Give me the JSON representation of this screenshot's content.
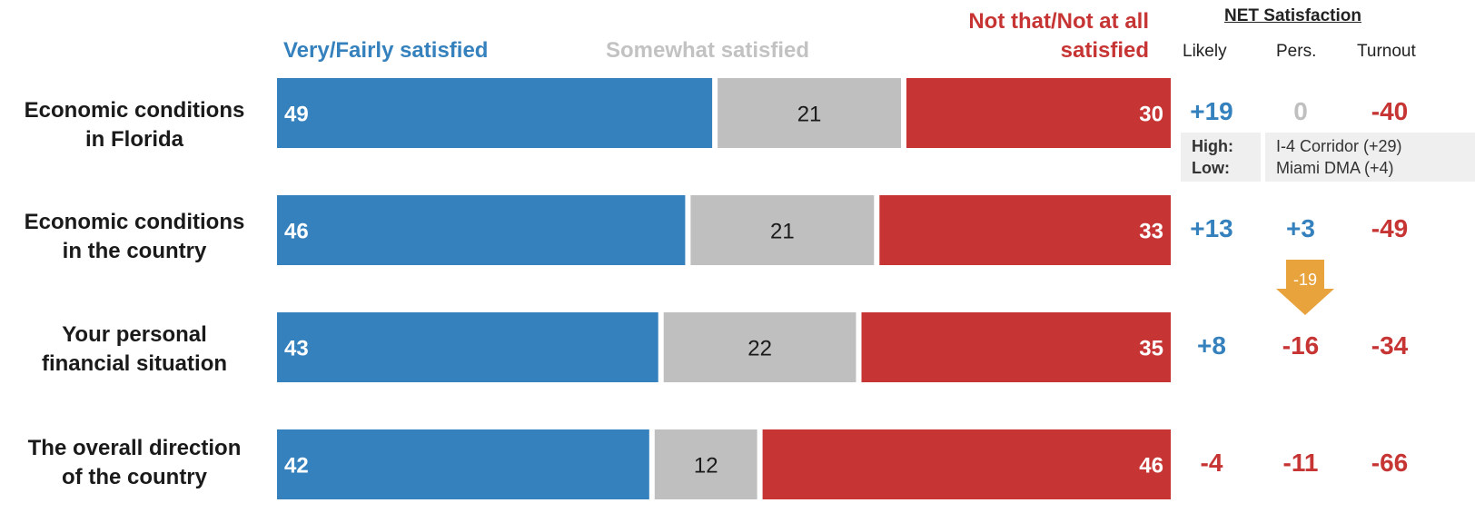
{
  "chart_data": {
    "type": "bar",
    "orientation": "horizontal",
    "stacked": true,
    "categories": [
      "Economic conditions in Florida",
      "Economic conditions in the country",
      "Your personal financial situation",
      "The overall direction of the country"
    ],
    "category_lines": [
      [
        "Economic conditions",
        "in Florida"
      ],
      [
        "Economic conditions",
        "in the country"
      ],
      [
        "Your personal",
        "financial situation"
      ],
      [
        "The overall direction",
        "of the country"
      ]
    ],
    "series": [
      {
        "name": "Very/Fairly satisfied",
        "color": "#3581bd",
        "label_color": "#ffffff",
        "values": [
          49,
          46,
          43,
          42
        ]
      },
      {
        "name": "Somewhat satisfied",
        "color": "#bfbfbf",
        "label_color": "#1a1a1a",
        "values": [
          21,
          21,
          22,
          12
        ]
      },
      {
        "name": "Not that/Not at all satisfied",
        "color": "#c63534",
        "label_color": "#ffffff",
        "values": [
          30,
          33,
          35,
          46
        ]
      }
    ],
    "legend_lines": [
      [
        "Very/Fairly satisfied"
      ],
      [
        "Somewhat satisfied"
      ],
      [
        "Not that/Not at all",
        "satisfied"
      ]
    ],
    "xlim": [
      0,
      100
    ],
    "legend_position": "top",
    "grid": false
  },
  "net": {
    "title": "NET Satisfaction",
    "columns": [
      "Likely",
      "Pers.",
      "Turnout"
    ],
    "rows": [
      [
        {
          "text": "+19",
          "color": "#3581bd"
        },
        {
          "text": "0",
          "color": "#bfbfbf"
        },
        {
          "text": "-40",
          "color": "#c63534"
        }
      ],
      [
        {
          "text": "+13",
          "color": "#3581bd"
        },
        {
          "text": "+3",
          "color": "#3581bd"
        },
        {
          "text": "-49",
          "color": "#c63534"
        }
      ],
      [
        {
          "text": "+8",
          "color": "#3581bd"
        },
        {
          "text": "-16",
          "color": "#c63534"
        },
        {
          "text": "-34",
          "color": "#c63534"
        }
      ],
      [
        {
          "text": "-4",
          "color": "#c63534"
        },
        {
          "text": "-11",
          "color": "#c63534"
        },
        {
          "text": "-66",
          "color": "#c63534"
        }
      ]
    ],
    "note": {
      "high_label": "High:",
      "low_label": "Low:",
      "high_value": "I-4 Corridor (+29)",
      "low_value": "Miami DMA (+4)"
    },
    "change_marker": {
      "text": "-19",
      "color": "#e8a33d"
    }
  }
}
